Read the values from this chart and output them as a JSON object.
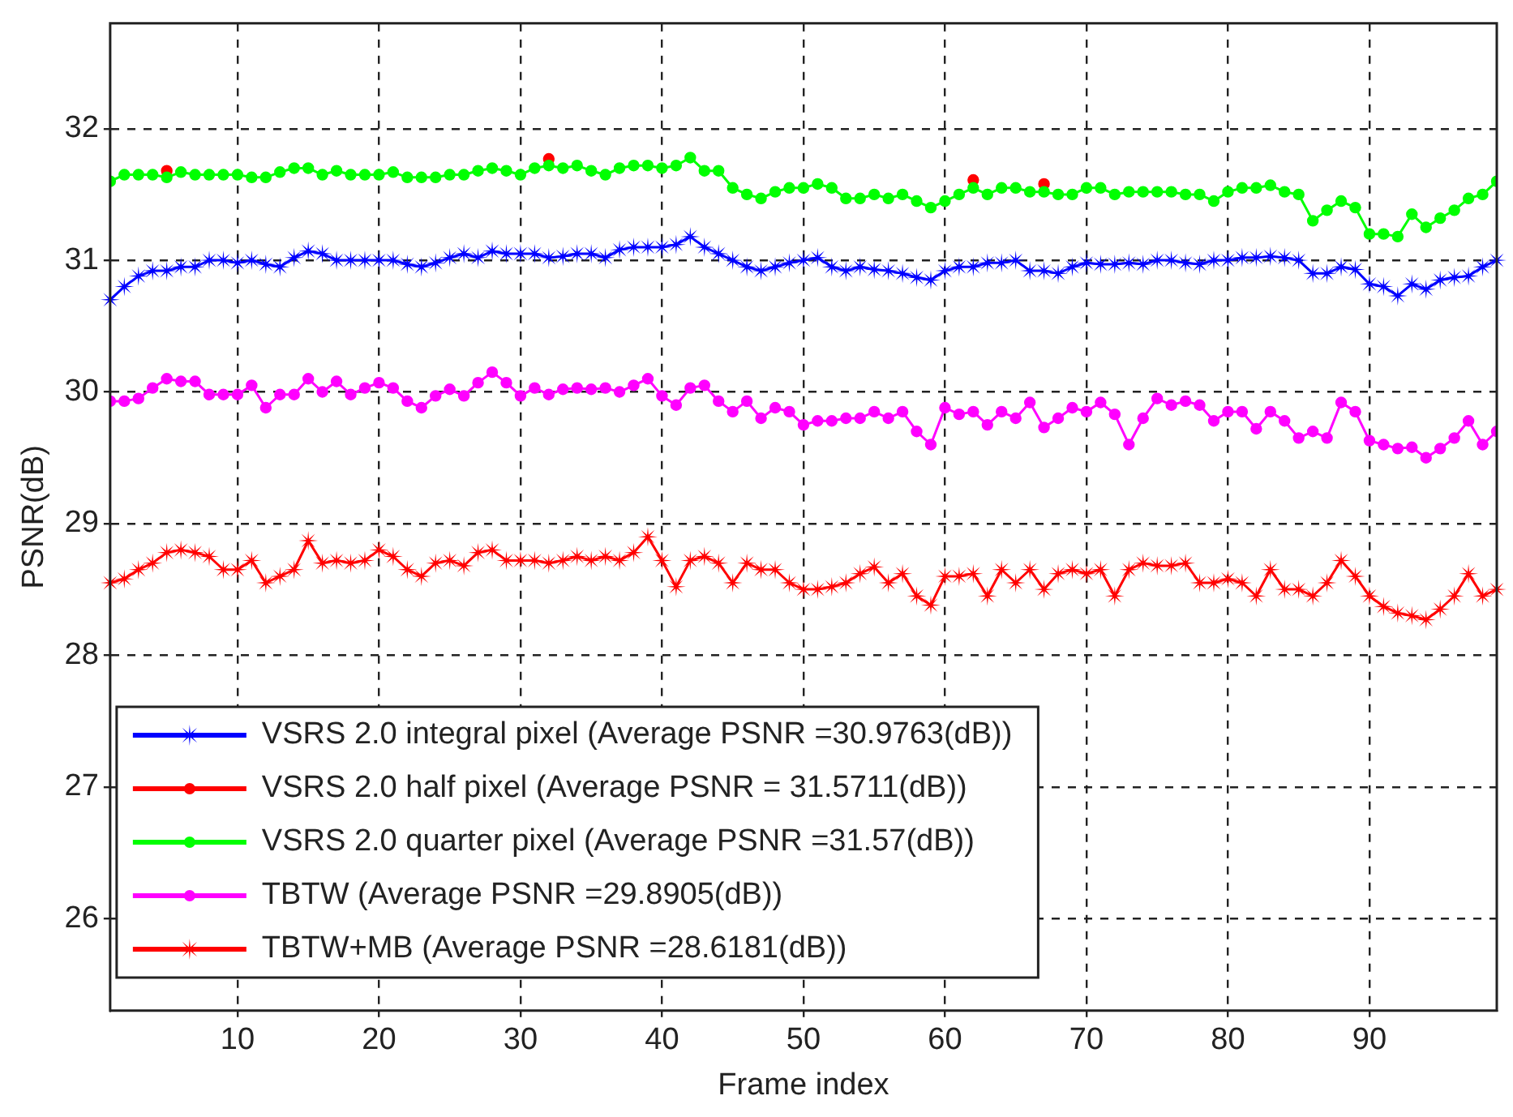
{
  "chart_data": {
    "type": "line",
    "xlabel": "Frame index",
    "ylabel": "PSNR(dB)",
    "x": [
      1,
      2,
      3,
      4,
      5,
      6,
      7,
      8,
      9,
      10,
      11,
      12,
      13,
      14,
      15,
      16,
      17,
      18,
      19,
      20,
      21,
      22,
      23,
      24,
      25,
      26,
      27,
      28,
      29,
      30,
      31,
      32,
      33,
      34,
      35,
      36,
      37,
      38,
      39,
      40,
      41,
      42,
      43,
      44,
      45,
      46,
      47,
      48,
      49,
      50,
      51,
      52,
      53,
      54,
      55,
      56,
      57,
      58,
      59,
      60,
      61,
      62,
      63,
      64,
      65,
      66,
      67,
      68,
      69,
      70,
      71,
      72,
      73,
      74,
      75,
      76,
      77,
      78,
      79,
      80,
      81,
      82,
      83,
      84,
      85,
      86,
      87,
      88,
      89,
      90,
      91,
      92,
      93,
      94,
      95,
      96,
      97,
      98,
      99
    ],
    "xlim": [
      1,
      99
    ],
    "xticks": [
      10,
      20,
      30,
      40,
      50,
      60,
      70,
      80,
      90
    ],
    "ylim": [
      25.3,
      32.8
    ],
    "yticks": [
      26,
      27,
      28,
      29,
      30,
      31,
      32
    ],
    "grid": true,
    "legend": "bottom left",
    "line_style": "solid",
    "series": [
      {
        "name": "VSRS 2.0 integral pixel (Average PSNR =30.9763(dB))",
        "color": "#0000ff",
        "marker": "star",
        "values": [
          30.7,
          30.8,
          30.88,
          30.92,
          30.92,
          30.95,
          30.95,
          31.0,
          31.0,
          30.98,
          31.0,
          30.97,
          30.95,
          31.02,
          31.07,
          31.05,
          31.0,
          31.0,
          31.0,
          31.0,
          31.0,
          30.97,
          30.95,
          30.98,
          31.02,
          31.05,
          31.02,
          31.07,
          31.05,
          31.05,
          31.05,
          31.02,
          31.03,
          31.05,
          31.05,
          31.02,
          31.08,
          31.1,
          31.1,
          31.1,
          31.12,
          31.18,
          31.1,
          31.05,
          31.0,
          30.95,
          30.92,
          30.95,
          30.98,
          31.0,
          31.02,
          30.95,
          30.92,
          30.95,
          30.93,
          30.92,
          30.9,
          30.87,
          30.85,
          30.92,
          30.95,
          30.95,
          30.98,
          30.98,
          31.0,
          30.92,
          30.92,
          30.9,
          30.95,
          30.98,
          30.97,
          30.97,
          30.98,
          30.97,
          31.0,
          31.0,
          30.98,
          30.97,
          31.0,
          31.0,
          31.02,
          31.02,
          31.03,
          31.02,
          31.0,
          30.9,
          30.9,
          30.95,
          30.93,
          30.82,
          30.8,
          30.73,
          30.82,
          30.78,
          30.85,
          30.87,
          30.88,
          30.95,
          31.0
        ]
      },
      {
        "name": "VSRS 2.0 half pixel (Average PSNR = 31.5711(dB))",
        "color": "#ff0000",
        "marker": "circle",
        "values": [
          null,
          null,
          null,
          null,
          31.68,
          null,
          null,
          null,
          null,
          null,
          null,
          null,
          null,
          null,
          null,
          null,
          null,
          null,
          null,
          null,
          null,
          null,
          null,
          null,
          null,
          null,
          null,
          null,
          null,
          null,
          null,
          31.77,
          null,
          null,
          null,
          null,
          null,
          null,
          null,
          null,
          null,
          null,
          null,
          null,
          null,
          null,
          null,
          null,
          null,
          null,
          null,
          null,
          null,
          null,
          null,
          null,
          null,
          null,
          null,
          null,
          null,
          31.61,
          null,
          null,
          null,
          null,
          31.58,
          null,
          null,
          null,
          null,
          null,
          null,
          null,
          null,
          null,
          null,
          null,
          null,
          null,
          null,
          null,
          null,
          null,
          null,
          null,
          null,
          null,
          null,
          null,
          null,
          null,
          null,
          null,
          null,
          null,
          null,
          null,
          null
        ]
      },
      {
        "name": "VSRS 2.0 quarter pixel (Average PSNR =31.57(dB))",
        "color": "#00ff00",
        "marker": "circle",
        "values": [
          31.6,
          31.65,
          31.65,
          31.65,
          31.63,
          31.67,
          31.65,
          31.65,
          31.65,
          31.65,
          31.63,
          31.63,
          31.67,
          31.7,
          31.7,
          31.65,
          31.68,
          31.65,
          31.65,
          31.65,
          31.67,
          31.63,
          31.63,
          31.63,
          31.65,
          31.65,
          31.68,
          31.7,
          31.68,
          31.65,
          31.7,
          31.72,
          31.7,
          31.72,
          31.68,
          31.65,
          31.7,
          31.72,
          31.72,
          31.7,
          31.72,
          31.78,
          31.68,
          31.68,
          31.55,
          31.5,
          31.47,
          31.52,
          31.55,
          31.55,
          31.58,
          31.55,
          31.47,
          31.47,
          31.5,
          31.47,
          31.5,
          31.45,
          31.4,
          31.45,
          31.5,
          31.55,
          31.5,
          31.55,
          31.55,
          31.52,
          31.52,
          31.5,
          31.5,
          31.55,
          31.55,
          31.5,
          31.52,
          31.52,
          31.52,
          31.52,
          31.5,
          31.5,
          31.45,
          31.52,
          31.55,
          31.55,
          31.57,
          31.52,
          31.5,
          31.3,
          31.38,
          31.45,
          31.4,
          31.2,
          31.2,
          31.18,
          31.35,
          31.25,
          31.32,
          31.38,
          31.47,
          31.5,
          31.6
        ]
      },
      {
        "name": "TBTW (Average PSNR =29.8905(dB))",
        "color": "#ff00ff",
        "marker": "circle",
        "values": [
          29.93,
          29.93,
          29.95,
          30.03,
          30.1,
          30.08,
          30.08,
          29.98,
          29.98,
          29.98,
          30.05,
          29.88,
          29.98,
          29.98,
          30.1,
          30.0,
          30.08,
          29.98,
          30.03,
          30.07,
          30.03,
          29.93,
          29.88,
          29.97,
          30.02,
          29.97,
          30.07,
          30.15,
          30.07,
          29.97,
          30.03,
          29.98,
          30.02,
          30.03,
          30.02,
          30.03,
          30.0,
          30.05,
          30.1,
          29.97,
          29.9,
          30.03,
          30.05,
          29.93,
          29.85,
          29.93,
          29.8,
          29.88,
          29.85,
          29.75,
          29.78,
          29.78,
          29.8,
          29.8,
          29.85,
          29.8,
          29.85,
          29.7,
          29.6,
          29.88,
          29.83,
          29.85,
          29.75,
          29.85,
          29.8,
          29.92,
          29.73,
          29.8,
          29.88,
          29.85,
          29.92,
          29.83,
          29.6,
          29.8,
          29.95,
          29.9,
          29.93,
          29.9,
          29.78,
          29.85,
          29.85,
          29.72,
          29.85,
          29.78,
          29.65,
          29.7,
          29.65,
          29.92,
          29.85,
          29.63,
          29.6,
          29.57,
          29.58,
          29.5,
          29.57,
          29.65,
          29.78,
          29.6,
          29.7
        ]
      },
      {
        "name": "TBTW+MB (Average PSNR =28.6181(dB))",
        "color": "#ff0000",
        "marker": "star",
        "values": [
          28.55,
          28.58,
          28.65,
          28.7,
          28.78,
          28.8,
          28.78,
          28.75,
          28.65,
          28.65,
          28.72,
          28.55,
          28.6,
          28.65,
          28.87,
          28.7,
          28.72,
          28.7,
          28.72,
          28.8,
          28.75,
          28.65,
          28.6,
          28.7,
          28.72,
          28.68,
          28.78,
          28.8,
          28.72,
          28.72,
          28.72,
          28.7,
          28.72,
          28.75,
          28.72,
          28.75,
          28.72,
          28.78,
          28.9,
          28.72,
          28.52,
          28.72,
          28.75,
          28.7,
          28.55,
          28.7,
          28.65,
          28.65,
          28.55,
          28.5,
          28.5,
          28.52,
          28.55,
          28.62,
          28.67,
          28.55,
          28.62,
          28.45,
          28.38,
          28.6,
          28.6,
          28.62,
          28.45,
          28.65,
          28.55,
          28.65,
          28.5,
          28.62,
          28.65,
          28.62,
          28.65,
          28.45,
          28.65,
          28.7,
          28.68,
          28.68,
          28.7,
          28.55,
          28.55,
          28.58,
          28.55,
          28.45,
          28.65,
          28.5,
          28.5,
          28.45,
          28.55,
          28.72,
          28.6,
          28.45,
          28.37,
          28.32,
          28.3,
          28.27,
          28.35,
          28.45,
          28.62,
          28.45,
          28.5
        ]
      }
    ]
  }
}
